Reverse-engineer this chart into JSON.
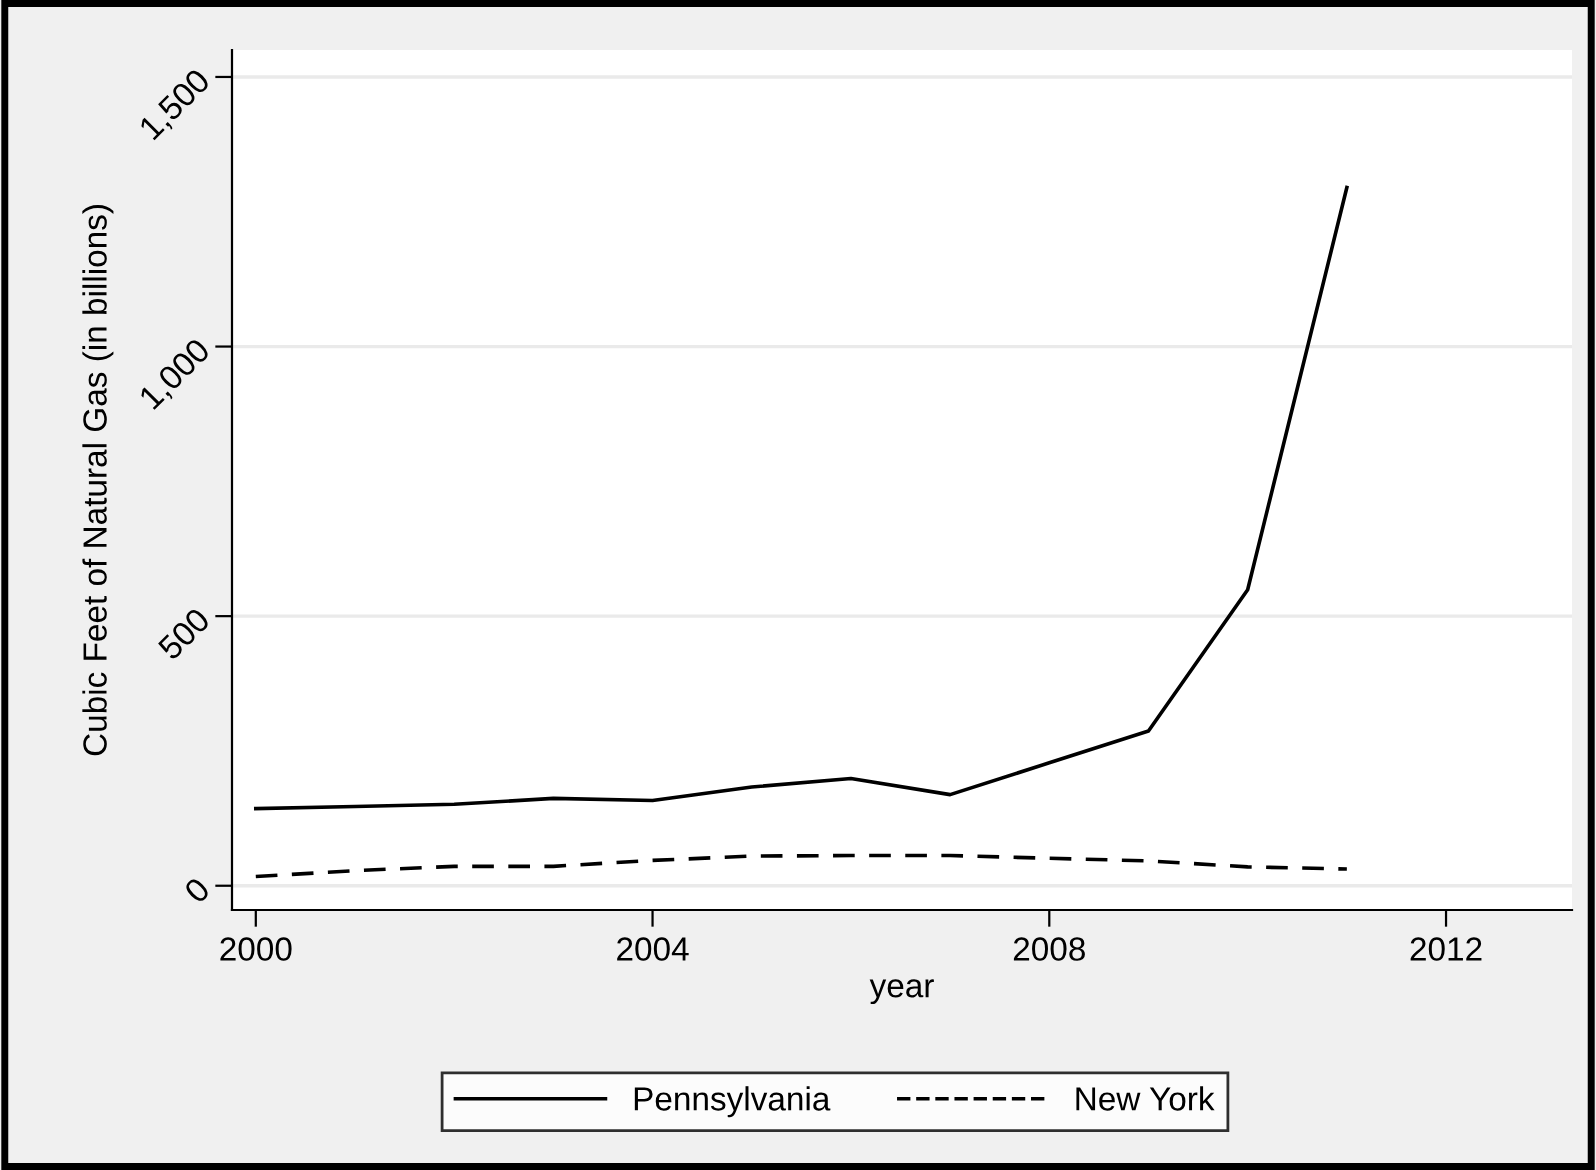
{
  "chart_data": {
    "type": "line",
    "xlabel": "year",
    "ylabel": "Cubic Feet of Natural Gas (in billions)",
    "x": [
      2000,
      2001,
      2002,
      2003,
      2004,
      2005,
      2006,
      2007,
      2008,
      2009,
      2010,
      2011
    ],
    "series": [
      {
        "name": "Pennsylvania",
        "color": "#000000",
        "line_style": "solid",
        "values": [
          143,
          147,
          151,
          162,
          158,
          183,
          199,
          169,
          228,
          287,
          549,
          1295
        ]
      },
      {
        "name": "New York",
        "color": "#000000",
        "line_style": "dashed",
        "values": [
          17,
          28,
          36,
          36,
          47,
          55,
          56,
          56,
          51,
          46,
          35,
          31
        ]
      }
    ],
    "xlim": [
      1999.76,
      2013.27
    ],
    "xticks": [
      2000,
      2004,
      2008,
      2012
    ],
    "ylim": [
      -45,
      1550
    ],
    "yticks": [
      {
        "value": 0,
        "label": "0"
      },
      {
        "value": 500,
        "label": "500"
      },
      {
        "value": 1000,
        "label": "1,000"
      },
      {
        "value": 1500,
        "label": "1,500"
      }
    ],
    "grid": "y",
    "legend": "bottom"
  }
}
